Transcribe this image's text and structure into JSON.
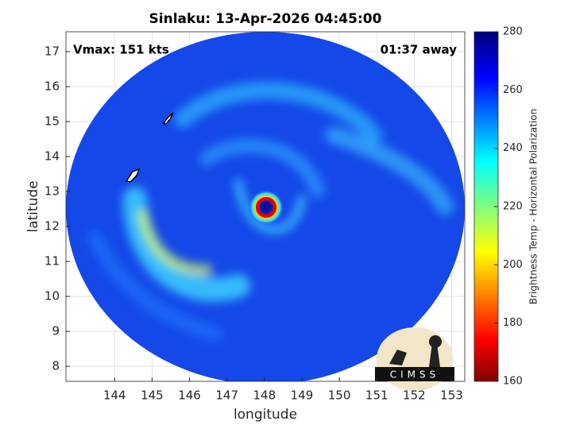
{
  "map": {
    "title": "Sinlaku: 13-Apr-2026 04:45:00",
    "annotations": {
      "left": "Vmax: 151 kts",
      "right": "01:37 away"
    },
    "xlabel": "longitude",
    "ylabel": "latitude",
    "xlim": [
      142.7,
      153.35
    ],
    "ylim": [
      7.57,
      17.57
    ],
    "xticks": [
      144,
      145,
      146,
      147,
      148,
      149,
      150,
      151,
      152,
      153
    ],
    "yticks": [
      8,
      9,
      10,
      11,
      12,
      13,
      14,
      15,
      16,
      17
    ],
    "grid": true,
    "colorbar": {
      "label": "Brightness Temp - Horizontal Polarization",
      "lim": [
        160,
        280
      ],
      "ticks": [
        160,
        180,
        200,
        220,
        240,
        260,
        280
      ]
    },
    "logo": "CIMSS"
  }
}
